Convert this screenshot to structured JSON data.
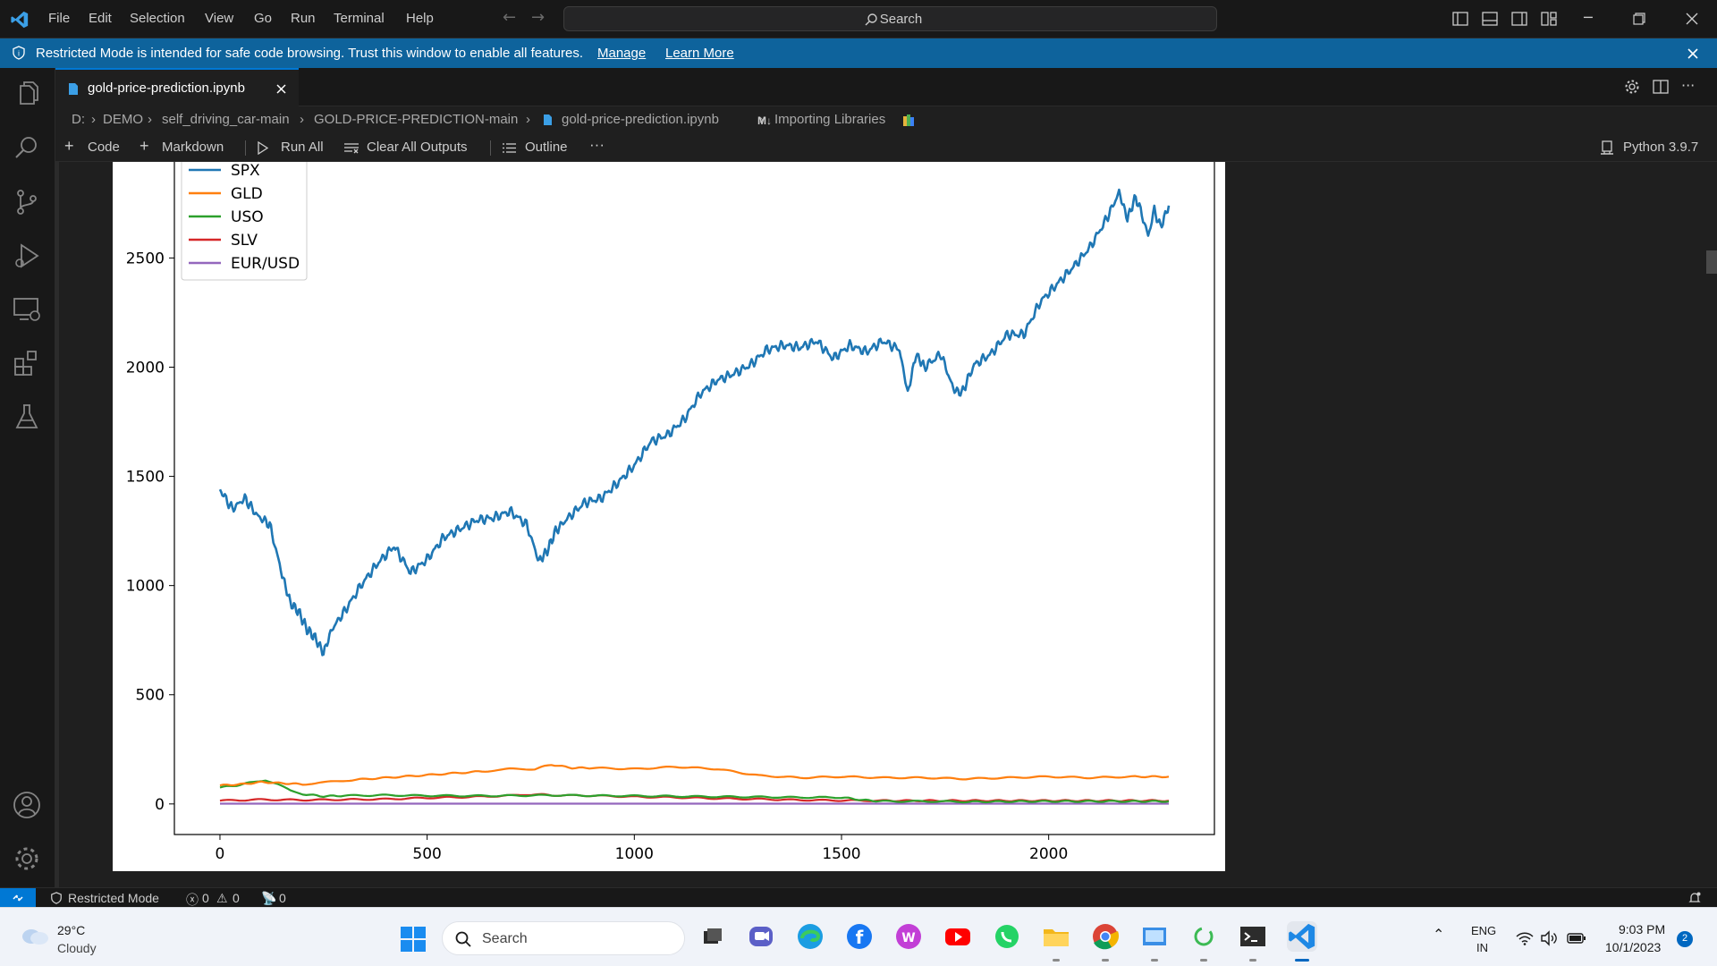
{
  "menu": [
    "File",
    "Edit",
    "Selection",
    "View",
    "Go",
    "Run",
    "Terminal",
    "Help"
  ],
  "search": {
    "placeholder": "Search"
  },
  "banner": {
    "text": "Restricted Mode is intended for safe code browsing. Trust this window to enable all features.",
    "manage": "Manage",
    "learn_more": "Learn More"
  },
  "tab": {
    "label": "gold-price-prediction.ipynb"
  },
  "breadcrumb": [
    "D:",
    "DEMO",
    "self_driving_car-main",
    "GOLD-PRICE-PREDICTION-main",
    "gold-price-prediction.ipynb",
    "Importing Libraries"
  ],
  "breadcrumb_md_prefix": "M↓",
  "toolbar": {
    "code": "Code",
    "markdown": "Markdown",
    "run_all": "Run All",
    "clear_outputs": "Clear All Outputs",
    "outline": "Outline",
    "more": "···",
    "kernel": "Python 3.9.7"
  },
  "status": {
    "restricted": "Restricted Mode",
    "errors": "0",
    "warnings": "0",
    "ports": "0"
  },
  "taskbar": {
    "temp": "29°C",
    "weather": "Cloudy",
    "search": "Search",
    "lang1": "ENG",
    "lang2": "IN",
    "time": "9:03 PM",
    "date": "10/1/2023",
    "notifications": "2"
  },
  "colors": {
    "accent": "#0078d4",
    "banner": "#0e639c",
    "spx": "#1f77b4",
    "gld": "#ff7f0e",
    "uso": "#2ca02c",
    "slv": "#d62728",
    "eurusd": "#9467bd"
  },
  "chart_data": {
    "type": "line",
    "xlim": [
      -110,
      2400
    ],
    "ylim": [
      -140,
      2940
    ],
    "xticks": [
      0,
      500,
      1000,
      1500,
      2000
    ],
    "yticks": [
      0,
      500,
      1000,
      1500,
      2000,
      2500
    ],
    "legend_position": "top-left",
    "grid": false,
    "series": [
      {
        "name": "SPX",
        "color": "#1f77b4",
        "x": [
          0,
          30,
          60,
          90,
          120,
          150,
          170,
          190,
          210,
          230,
          250,
          270,
          300,
          340,
          380,
          420,
          460,
          500,
          540,
          580,
          620,
          660,
          700,
          740,
          770,
          790,
          810,
          840,
          880,
          920,
          960,
          1000,
          1040,
          1080,
          1120,
          1160,
          1200,
          1240,
          1280,
          1320,
          1360,
          1400,
          1440,
          1480,
          1520,
          1560,
          1600,
          1640,
          1660,
          1680,
          1700,
          1740,
          1770,
          1790,
          1820,
          1860,
          1900,
          1940,
          1980,
          2020,
          2060,
          2100,
          2140,
          2170,
          2190,
          2210,
          2225,
          2240,
          2255,
          2270,
          2290
        ],
        "y": [
          1440,
          1350,
          1400,
          1320,
          1280,
          1050,
          920,
          880,
          800,
          760,
          690,
          800,
          880,
          1000,
          1100,
          1180,
          1060,
          1120,
          1220,
          1260,
          1300,
          1310,
          1340,
          1280,
          1110,
          1160,
          1250,
          1310,
          1380,
          1400,
          1470,
          1550,
          1660,
          1690,
          1760,
          1880,
          1940,
          1970,
          2010,
          2080,
          2100,
          2090,
          2120,
          2040,
          2100,
          2070,
          2120,
          2080,
          1880,
          2060,
          2000,
          2060,
          1900,
          1880,
          2010,
          2060,
          2150,
          2150,
          2300,
          2380,
          2460,
          2550,
          2680,
          2800,
          2680,
          2780,
          2700,
          2600,
          2720,
          2640,
          2740
        ]
      },
      {
        "name": "GLD",
        "color": "#ff7f0e",
        "x": [
          0,
          50,
          100,
          150,
          200,
          260,
          320,
          400,
          480,
          560,
          640,
          700,
          760,
          800,
          850,
          900,
          1000,
          1100,
          1200,
          1300,
          1400,
          1500,
          1600,
          1700,
          1800,
          1900,
          2000,
          2100,
          2200,
          2290
        ],
        "y": [
          85,
          90,
          100,
          95,
          90,
          100,
          110,
          120,
          130,
          140,
          150,
          160,
          160,
          180,
          165,
          165,
          160,
          170,
          160,
          130,
          120,
          125,
          120,
          120,
          115,
          120,
          125,
          120,
          125,
          125
        ]
      },
      {
        "name": "USO",
        "color": "#2ca02c",
        "x": [
          0,
          40,
          80,
          110,
          140,
          170,
          200,
          250,
          300,
          400,
          500,
          600,
          700,
          800,
          900,
          1000,
          1100,
          1200,
          1300,
          1400,
          1500,
          1550,
          1600,
          1700,
          1800,
          2000,
          2200,
          2290
        ],
        "y": [
          75,
          85,
          100,
          110,
          90,
          60,
          45,
          35,
          38,
          40,
          38,
          37,
          38,
          40,
          38,
          37,
          35,
          33,
          32,
          30,
          30,
          18,
          12,
          12,
          10,
          12,
          12,
          12
        ]
      },
      {
        "name": "SLV",
        "color": "#d62728",
        "x": [
          0,
          100,
          200,
          300,
          400,
          500,
          600,
          700,
          760,
          800,
          900,
          1000,
          1100,
          1200,
          1300,
          1400,
          1500,
          1600,
          1800,
          2000,
          2290
        ],
        "y": [
          15,
          20,
          18,
          20,
          22,
          28,
          32,
          38,
          45,
          40,
          38,
          33,
          30,
          25,
          22,
          18,
          16,
          15,
          15,
          15,
          15
        ]
      },
      {
        "name": "EUR/USD",
        "color": "#9467bd",
        "x": [
          0,
          2290
        ],
        "y": [
          1.3,
          1.1
        ]
      }
    ]
  }
}
